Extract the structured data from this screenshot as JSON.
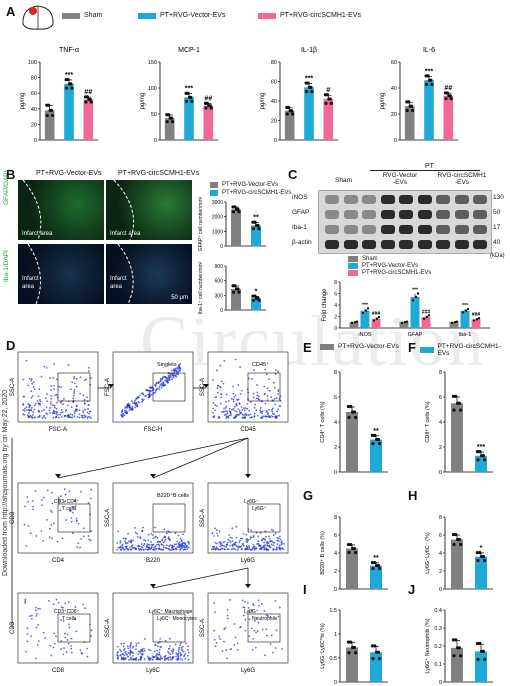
{
  "panel_letters": {
    "A": "A",
    "B": "B",
    "C": "C",
    "D": "D",
    "E": "E",
    "F": "F",
    "G": "G",
    "H": "H",
    "I": "I",
    "J": "J"
  },
  "colors": {
    "sham": "#808080",
    "vector": "#1fa9d6",
    "circ": "#f2679a"
  },
  "legend_a": {
    "sham": "Sham",
    "vector": "PT+RVG-Vector-EVs",
    "circ": "PT+RVG-circSCMH1-EVs"
  },
  "legend_ef": {
    "vector": "PT+RVG-Vector-EVs",
    "circ": "PT+RVG-circSCMH1-EVs"
  },
  "panel_b": {
    "col1": "PT+RVG-Vector-EVs",
    "col2": "PT+RVG-circSCMH1-EVs",
    "row1_label": "GFAP/DAPI",
    "row2_label": "Iba-1/DAPI",
    "infarct": "Infarct area",
    "infarct2a": "Infarct",
    "infarct2b": "area",
    "scale": "50 μm",
    "legend_vec": "PT+RVG-Vector-EVs",
    "legend_circ": "PT+RVG-circSCMH1-EVs",
    "gfap_ylabel": "GFAP⁺ cell number/mm²",
    "iba_ylabel": "Iba-1⁺ cell number/mm²",
    "gfap_sig": "**",
    "iba_sig": "*"
  },
  "panel_c": {
    "pt": "PT",
    "col_sham": "Sham",
    "col_vec": "RVG-Vector",
    "col_vec2": "-EVs",
    "col_circ": "RVG-circSCMH1",
    "col_circ2": "-EVs",
    "rows": [
      {
        "name": "iNOS",
        "kda": "130"
      },
      {
        "name": "GFAP",
        "kda": "50"
      },
      {
        "name": "Iba-1",
        "kda": "17"
      },
      {
        "name": "β-actin",
        "kda": "40"
      }
    ],
    "kda_label": "(kDa)",
    "legend": [
      "Sham",
      "PT+RVG-Vector-EVs",
      "PT+RVG-circSCMH1-EVs"
    ],
    "ylabel": "Fold change"
  },
  "panel_d": {
    "p1": {
      "x": "FSC-A",
      "y": "SSC-A"
    },
    "p2": {
      "x": "FSC-H",
      "y": "FSC-A",
      "gate": "Singlets"
    },
    "p3": {
      "x": "CD45",
      "y": "SSC-A",
      "gate": "CD45⁺"
    },
    "p4": {
      "x": "CD4",
      "y": "CD3",
      "gate1": "CD3⁺CD4⁺",
      "gate2": "T cells"
    },
    "p5": {
      "x": "B220",
      "y": "SSC-A",
      "gate": "B220⁺B cells"
    },
    "p6": {
      "x": "Ly6G",
      "y": "SSC-A",
      "gate1": "Ly6G⁻",
      "gate2": "Ly6G⁺"
    },
    "p7": {
      "x": "CD8",
      "y": "CD3",
      "gate1": "CD3⁺CD8⁺",
      "gate2": "T cells"
    },
    "p8": {
      "x": "Ly6C",
      "y": "SSC-A",
      "gate1": "Ly6C⁺ Macrophage",
      "gate2": "Ly6C⁻ Monocytes"
    },
    "p9": {
      "x": "Ly6G",
      "y": "SSC-A",
      "gate1": "Ly6G⁺",
      "gate2": "Neutrophils"
    }
  },
  "watermark": "Circulation",
  "side_note": "Downloaded from http://ahajournals.org by on May 22, 2020",
  "chart_data": [
    {
      "id": "A-TNF",
      "type": "bar",
      "title": "TNF-α",
      "ylabel": "pg/mg",
      "ylim": [
        0,
        100
      ],
      "yticks": [
        0,
        20,
        40,
        60,
        80,
        100
      ],
      "categories": [
        "Sham",
        "PT+RVG-Vector-EVs",
        "PT+RVG-circSCMH1-EVs"
      ],
      "values": [
        38,
        72,
        52
      ],
      "errors": [
        6,
        5,
        3
      ],
      "sig": [
        "",
        "***",
        "##"
      ]
    },
    {
      "id": "A-MCP",
      "type": "bar",
      "title": "MCP-1",
      "ylabel": "pg/mg",
      "ylim": [
        0,
        150
      ],
      "yticks": [
        0,
        50,
        100,
        150
      ],
      "categories": [
        "Sham",
        "PT+RVG-Vector-EVs",
        "PT+RVG-circSCMH1-EVs"
      ],
      "values": [
        42,
        82,
        66
      ],
      "errors": [
        6,
        7,
        4
      ],
      "sig": [
        "",
        "***",
        "##"
      ]
    },
    {
      "id": "A-IL1b",
      "type": "bar",
      "title": "IL-1β",
      "ylabel": "pg/mg",
      "ylim": [
        0,
        80
      ],
      "yticks": [
        0,
        20,
        40,
        60,
        80
      ],
      "categories": [
        "Sham",
        "PT+RVG-Vector-EVs",
        "PT+RVG-circSCMH1-EVs"
      ],
      "values": [
        30,
        54,
        42
      ],
      "errors": [
        3,
        4,
        4
      ],
      "sig": [
        "",
        "***",
        "#"
      ]
    },
    {
      "id": "A-IL6",
      "type": "bar",
      "title": "IL-6",
      "ylabel": "pg/mg",
      "ylim": [
        0,
        60
      ],
      "yticks": [
        0,
        20,
        40,
        60
      ],
      "categories": [
        "Sham",
        "PT+RVG-Vector-EVs",
        "PT+RVG-circSCMH1-EVs"
      ],
      "values": [
        26,
        46,
        34
      ],
      "errors": [
        3,
        3,
        2
      ],
      "sig": [
        "",
        "***",
        "##"
      ]
    },
    {
      "id": "B-GFAP",
      "type": "bar",
      "ylim": [
        0,
        3000
      ],
      "yticks": [
        0,
        1000,
        2000,
        3000
      ],
      "categories": [
        "PT+RVG-Vector-EVs",
        "PT+RVG-circSCMH1-EVs"
      ],
      "values": [
        2500,
        1400
      ],
      "errors": [
        150,
        200
      ],
      "sig": [
        "",
        "**"
      ]
    },
    {
      "id": "B-IBA",
      "type": "bar",
      "ylim": [
        0,
        900
      ],
      "yticks": [
        0,
        300,
        600,
        900
      ],
      "categories": [
        "PT+RVG-Vector-EVs",
        "PT+RVG-circSCMH1-EVs"
      ],
      "values": [
        430,
        240
      ],
      "errors": [
        60,
        40
      ],
      "sig": [
        "",
        "*"
      ]
    },
    {
      "id": "C-WB",
      "type": "bar",
      "ylabel": "Fold change",
      "ylim": [
        0,
        8
      ],
      "yticks": [
        0,
        2,
        4,
        6,
        8
      ],
      "categories": [
        "iNOS",
        "GFAP",
        "Iba-1"
      ],
      "series": [
        {
          "name": "Sham",
          "values": [
            1,
            1,
            1
          ],
          "errors": [
            0.1,
            0.1,
            0.1
          ]
        },
        {
          "name": "PT+RVG-Vector-EVs",
          "values": [
            3.0,
            5.4,
            3.0
          ],
          "errors": [
            0.4,
            0.6,
            0.3
          ]
        },
        {
          "name": "PT+RVG-circSCMH1-EVs",
          "values": [
            1.6,
            1.9,
            1.5
          ],
          "errors": [
            0.3,
            0.3,
            0.2
          ]
        }
      ],
      "sig": [
        [
          "",
          "***",
          "###"
        ],
        [
          "",
          "***",
          "###"
        ],
        [
          "",
          "***",
          "###"
        ]
      ]
    },
    {
      "id": "E",
      "type": "bar",
      "ylabel": "CD4⁺ T cells (%)",
      "ylim": [
        0,
        8
      ],
      "yticks": [
        0,
        2,
        4,
        6,
        8
      ],
      "categories": [
        "PT+RVG-Vector-EVs",
        "PT+RVG-circSCMH1-EVs"
      ],
      "values": [
        4.8,
        2.6
      ],
      "errors": [
        0.4,
        0.3
      ],
      "sig": [
        "",
        "**"
      ]
    },
    {
      "id": "F",
      "type": "bar",
      "ylabel": "CD8⁺ T cells (%)",
      "ylim": [
        0,
        8
      ],
      "yticks": [
        0,
        2,
        4,
        6,
        8
      ],
      "categories": [
        "PT+RVG-Vector-EVs",
        "PT+RVG-circSCMH1-EVs"
      ],
      "values": [
        5.5,
        1.3
      ],
      "errors": [
        0.5,
        0.3
      ],
      "sig": [
        "",
        "***"
      ]
    },
    {
      "id": "G",
      "type": "bar",
      "ylabel": "B220⁺ B cells (%)",
      "ylim": [
        0,
        8
      ],
      "yticks": [
        0,
        2,
        4,
        6,
        8
      ],
      "categories": [
        "PT+RVG-Vector-EVs",
        "PT+RVG-circSCMH1-EVs"
      ],
      "values": [
        4.5,
        2.6
      ],
      "errors": [
        0.4,
        0.3
      ],
      "sig": [
        "",
        "**"
      ]
    },
    {
      "id": "H",
      "type": "bar",
      "ylabel": "Ly6G⁻Ly6C⁻ (%)",
      "ylim": [
        0,
        8
      ],
      "yticks": [
        0,
        2,
        4,
        6,
        8
      ],
      "categories": [
        "PT+RVG-Vector-EVs",
        "PT+RVG-circSCMH1-EVs"
      ],
      "values": [
        5.5,
        3.6
      ],
      "errors": [
        0.5,
        0.4
      ],
      "sig": [
        "",
        "*"
      ]
    },
    {
      "id": "I",
      "type": "bar",
      "ylabel": "Ly6G⁻Ly6C^hi (%)",
      "ylim": [
        0,
        1.5
      ],
      "yticks": [
        0,
        0.5,
        1.0,
        1.5
      ],
      "categories": [
        "PT+RVG-Vector-EVs",
        "PT+RVG-circSCMH1-EVs"
      ],
      "values": [
        0.72,
        0.62
      ],
      "errors": [
        0.1,
        0.12
      ],
      "sig": [
        "",
        ""
      ]
    },
    {
      "id": "J",
      "type": "bar",
      "ylabel": "Ly6G⁺ Neutrophils (%)",
      "ylim": [
        0,
        0.4
      ],
      "yticks": [
        0,
        0.1,
        0.2,
        0.3,
        0.4
      ],
      "categories": [
        "PT+RVG-Vector-EVs",
        "PT+RVG-circSCMH1-EVs"
      ],
      "values": [
        0.19,
        0.17
      ],
      "errors": [
        0.04,
        0.04
      ],
      "sig": [
        "",
        ""
      ]
    }
  ]
}
